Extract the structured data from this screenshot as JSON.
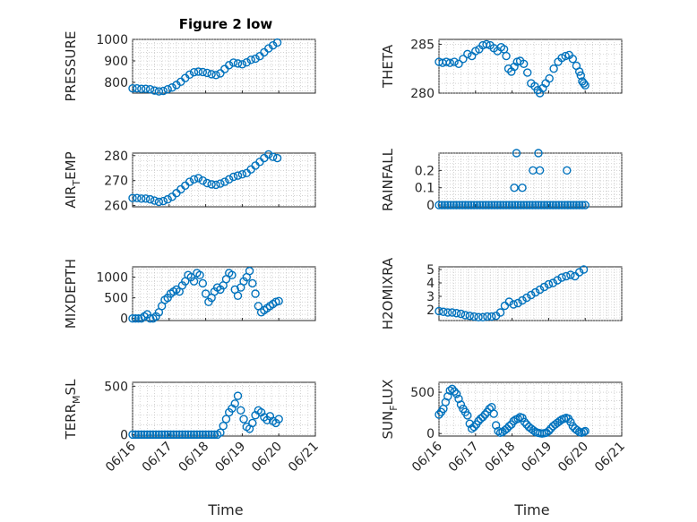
{
  "figure": {
    "title": "Figure 2 low",
    "xlabel": "Time",
    "xticks": [
      "06/16",
      "06/17",
      "06/18",
      "06/19",
      "06/20",
      "06/21"
    ],
    "marker_color": "#0072BD"
  },
  "chart_data": [
    {
      "type": "scatter",
      "ylabel": "PRESSURE",
      "ylabel_sub": "",
      "ylabel_tail": "",
      "ylim": [
        750,
        1000
      ],
      "yticks": [
        800,
        900,
        1000
      ],
      "ytick_labels": [
        "800",
        "900",
        "1000"
      ],
      "grid": true,
      "x": [
        0.0,
        0.12,
        0.24,
        0.36,
        0.48,
        0.6,
        0.72,
        0.84,
        0.96,
        1.08,
        1.2,
        1.32,
        1.44,
        1.56,
        1.68,
        1.8,
        1.92,
        2.04,
        2.16,
        2.28,
        2.4,
        2.52,
        2.64,
        2.76,
        2.88,
        3.0,
        3.12,
        3.24,
        3.36,
        3.48,
        3.6,
        3.72,
        3.84,
        3.96
      ],
      "y": [
        772,
        772,
        770,
        770,
        768,
        762,
        758,
        760,
        768,
        776,
        788,
        803,
        820,
        836,
        847,
        850,
        848,
        844,
        838,
        834,
        842,
        862,
        880,
        892,
        888,
        884,
        893,
        905,
        910,
        922,
        940,
        958,
        972,
        985
      ]
    },
    {
      "type": "scatter",
      "ylabel": "THETA",
      "ylabel_sub": "",
      "ylabel_tail": "",
      "ylim": [
        280,
        285.5
      ],
      "yticks": [
        280,
        285
      ],
      "ytick_labels": [
        "280",
        "285"
      ],
      "grid": true,
      "x": [
        0.0,
        0.1,
        0.2,
        0.3,
        0.42,
        0.54,
        0.66,
        0.78,
        0.9,
        1.0,
        1.1,
        1.2,
        1.3,
        1.4,
        1.5,
        1.6,
        1.7,
        1.78,
        1.84,
        1.9,
        1.98,
        2.06,
        2.14,
        2.22,
        2.32,
        2.42,
        2.52,
        2.62,
        2.7,
        2.76,
        2.84,
        2.92,
        3.02,
        3.14,
        3.26,
        3.36,
        3.46,
        3.56,
        3.66,
        3.76,
        3.84,
        3.88,
        3.92,
        3.96,
        4.0
      ],
      "y": [
        283.2,
        283.1,
        283.2,
        283.1,
        283.2,
        283.0,
        283.5,
        284.0,
        283.8,
        284.3,
        284.5,
        284.9,
        285.0,
        284.9,
        284.6,
        284.3,
        284.7,
        284.5,
        283.8,
        282.5,
        282.2,
        282.7,
        283.2,
        283.3,
        283.0,
        282.1,
        281.0,
        280.7,
        280.3,
        280.0,
        280.5,
        281.0,
        281.5,
        282.5,
        283.2,
        283.6,
        283.8,
        283.9,
        283.5,
        282.8,
        282.2,
        281.8,
        281.2,
        281.0,
        280.8
      ]
    },
    {
      "type": "scatter",
      "ylabel": "AIR",
      "ylabel_sub": "T",
      "ylabel_tail": "EMP",
      "ylim": [
        259.5,
        281
      ],
      "yticks": [
        260,
        270,
        280
      ],
      "ytick_labels": [
        "260",
        "270",
        "280"
      ],
      "grid": true,
      "x": [
        0.0,
        0.12,
        0.24,
        0.36,
        0.48,
        0.6,
        0.72,
        0.84,
        0.96,
        1.08,
        1.2,
        1.32,
        1.44,
        1.56,
        1.68,
        1.8,
        1.92,
        2.04,
        2.16,
        2.28,
        2.4,
        2.52,
        2.64,
        2.76,
        2.88,
        3.0,
        3.12,
        3.24,
        3.36,
        3.48,
        3.6,
        3.72,
        3.84,
        3.96
      ],
      "y": [
        263,
        263,
        262.8,
        262.8,
        262.5,
        262,
        261.5,
        261.8,
        262.5,
        263.5,
        265,
        266.5,
        268,
        269.5,
        270.5,
        271,
        270,
        269,
        268.5,
        268.3,
        268.8,
        269.5,
        270.5,
        271.5,
        272,
        272.5,
        273,
        274.5,
        276,
        277.5,
        279,
        280.5,
        279.5,
        279
      ]
    },
    {
      "type": "scatter",
      "ylabel": "RAINFALL",
      "ylabel_sub": "",
      "ylabel_tail": "",
      "ylim": [
        -0.01,
        0.3
      ],
      "yticks": [
        0,
        0.1,
        0.2
      ],
      "ytick_labels": [
        "0",
        "0.1",
        "0.2"
      ],
      "grid": true,
      "x": [
        0.0,
        0.08,
        0.16,
        0.24,
        0.32,
        0.4,
        0.48,
        0.56,
        0.64,
        0.72,
        0.8,
        0.88,
        0.96,
        1.04,
        1.12,
        1.2,
        1.28,
        1.36,
        1.44,
        1.52,
        1.6,
        1.68,
        1.76,
        1.84,
        1.92,
        2.0,
        2.08,
        2.16,
        2.24,
        2.32,
        2.4,
        2.48,
        2.56,
        2.64,
        2.72,
        2.8,
        2.88,
        2.96,
        3.04,
        3.12,
        3.2,
        3.28,
        3.36,
        3.44,
        3.52,
        3.6,
        3.68,
        3.76,
        3.84,
        3.92,
        4.0,
        2.06,
        2.12,
        2.28,
        2.57,
        2.72,
        2.76,
        3.5
      ],
      "y": [
        0,
        0,
        0,
        0,
        0,
        0,
        0,
        0,
        0,
        0,
        0,
        0,
        0,
        0,
        0,
        0,
        0,
        0,
        0,
        0,
        0,
        0,
        0,
        0,
        0,
        0,
        0,
        0,
        0,
        0,
        0,
        0,
        0,
        0,
        0,
        0,
        0,
        0,
        0,
        0,
        0,
        0,
        0,
        0,
        0,
        0,
        0,
        0,
        0,
        0,
        0,
        0.1,
        0.3,
        0.1,
        0.2,
        0.3,
        0.2,
        0.2
      ]
    },
    {
      "type": "scatter",
      "ylabel": "MIXDEPTH",
      "ylabel_sub": "",
      "ylabel_tail": "",
      "ylim": [
        -50,
        1250
      ],
      "yticks": [
        0,
        500,
        1000
      ],
      "ytick_labels": [
        "0",
        "500",
        "1000"
      ],
      "grid": true,
      "x": [
        0.0,
        0.08,
        0.16,
        0.24,
        0.32,
        0.4,
        0.48,
        0.56,
        0.64,
        0.72,
        0.8,
        0.88,
        0.96,
        1.04,
        1.12,
        1.2,
        1.28,
        1.36,
        1.44,
        1.52,
        1.6,
        1.68,
        1.76,
        1.84,
        1.92,
        2.0,
        2.08,
        2.16,
        2.24,
        2.32,
        2.4,
        2.48,
        2.56,
        2.64,
        2.72,
        2.8,
        2.88,
        2.96,
        3.04,
        3.12,
        3.2,
        3.28,
        3.36,
        3.44,
        3.52,
        3.6,
        3.68,
        3.76,
        3.84,
        3.92,
        4.0
      ],
      "y": [
        0,
        0,
        0,
        0,
        50,
        100,
        0,
        0,
        50,
        150,
        300,
        450,
        500,
        600,
        650,
        700,
        650,
        800,
        900,
        1050,
        1000,
        900,
        1100,
        1050,
        850,
        600,
        400,
        500,
        650,
        750,
        700,
        800,
        950,
        1100,
        1050,
        700,
        550,
        750,
        900,
        1000,
        1150,
        850,
        600,
        300,
        150,
        200,
        250,
        300,
        350,
        400,
        420
      ]
    },
    {
      "type": "scatter",
      "ylabel": "H2OMIXRA",
      "ylabel_sub": "",
      "ylabel_tail": "",
      "ylim": [
        1.2,
        5.2
      ],
      "yticks": [
        2,
        3,
        4,
        5
      ],
      "ytick_labels": [
        "2",
        "3",
        "4",
        "5"
      ],
      "grid": true,
      "x": [
        0.0,
        0.12,
        0.24,
        0.36,
        0.48,
        0.6,
        0.72,
        0.84,
        0.96,
        1.08,
        1.2,
        1.32,
        1.44,
        1.56,
        1.68,
        1.8,
        1.92,
        2.04,
        2.16,
        2.28,
        2.4,
        2.52,
        2.64,
        2.76,
        2.88,
        3.0,
        3.12,
        3.24,
        3.36,
        3.48,
        3.6,
        3.72,
        3.84,
        3.96
      ],
      "y": [
        1.9,
        1.85,
        1.8,
        1.8,
        1.75,
        1.7,
        1.6,
        1.55,
        1.5,
        1.45,
        1.45,
        1.5,
        1.5,
        1.55,
        1.8,
        2.3,
        2.6,
        2.4,
        2.5,
        2.7,
        2.9,
        3.1,
        3.3,
        3.5,
        3.7,
        3.9,
        4.0,
        4.2,
        4.4,
        4.5,
        4.6,
        4.5,
        4.8,
        5.0
      ]
    },
    {
      "type": "scatter",
      "ylabel": "TERR",
      "ylabel_sub": "M",
      "ylabel_tail": "SL",
      "ylim": [
        -15,
        540
      ],
      "yticks": [
        0,
        500
      ],
      "ytick_labels": [
        "0",
        "500"
      ],
      "grid": true,
      "x": [
        0.0,
        0.08,
        0.16,
        0.24,
        0.32,
        0.4,
        0.48,
        0.56,
        0.64,
        0.72,
        0.8,
        0.88,
        0.96,
        1.04,
        1.12,
        1.2,
        1.28,
        1.36,
        1.44,
        1.52,
        1.6,
        1.68,
        1.76,
        1.84,
        1.92,
        2.0,
        2.08,
        2.16,
        2.24,
        2.32,
        2.4,
        2.48,
        2.56,
        2.64,
        2.72,
        2.8,
        2.88,
        2.96,
        3.04,
        3.12,
        3.2,
        3.28,
        3.36,
        3.44,
        3.52,
        3.6,
        3.68,
        3.76,
        3.84,
        3.92,
        4.0
      ],
      "y": [
        0,
        0,
        0,
        0,
        0,
        0,
        0,
        0,
        0,
        0,
        0,
        0,
        0,
        0,
        0,
        0,
        0,
        0,
        0,
        0,
        0,
        0,
        0,
        0,
        0,
        0,
        0,
        0,
        0,
        0,
        20,
        90,
        160,
        230,
        270,
        320,
        400,
        250,
        160,
        80,
        60,
        120,
        200,
        250,
        230,
        180,
        150,
        190,
        140,
        120,
        160
      ]
    },
    {
      "type": "scatter",
      "ylabel": "SUN",
      "ylabel_sub": "F",
      "ylabel_tail": "LUX",
      "ylim": [
        -30,
        620
      ],
      "yticks": [
        0,
        500
      ],
      "ytick_labels": [
        "0",
        "500"
      ],
      "grid": true,
      "x": [
        0.0,
        0.06,
        0.12,
        0.18,
        0.24,
        0.3,
        0.36,
        0.42,
        0.48,
        0.54,
        0.6,
        0.66,
        0.72,
        0.78,
        0.84,
        0.9,
        0.96,
        1.02,
        1.08,
        1.14,
        1.2,
        1.26,
        1.32,
        1.38,
        1.44,
        1.5,
        1.56,
        1.62,
        1.68,
        1.74,
        1.8,
        1.86,
        1.92,
        1.98,
        2.04,
        2.1,
        2.16,
        2.22,
        2.28,
        2.34,
        2.4,
        2.46,
        2.52,
        2.58,
        2.64,
        2.7,
        2.76,
        2.82,
        2.88,
        2.94,
        3.0,
        3.06,
        3.12,
        3.18,
        3.24,
        3.3,
        3.36,
        3.42,
        3.48,
        3.54,
        3.6,
        3.66,
        3.72,
        3.78,
        3.84,
        3.9,
        3.96,
        4.0
      ],
      "y": [
        230,
        260,
        300,
        380,
        450,
        520,
        540,
        510,
        480,
        420,
        350,
        300,
        260,
        220,
        120,
        60,
        80,
        110,
        150,
        180,
        200,
        230,
        260,
        300,
        320,
        240,
        100,
        30,
        10,
        20,
        40,
        60,
        90,
        110,
        150,
        170,
        180,
        200,
        190,
        140,
        110,
        80,
        60,
        40,
        20,
        10,
        5,
        0,
        5,
        10,
        30,
        60,
        90,
        110,
        130,
        150,
        170,
        180,
        190,
        180,
        140,
        90,
        60,
        40,
        20,
        10,
        20,
        30
      ]
    }
  ]
}
